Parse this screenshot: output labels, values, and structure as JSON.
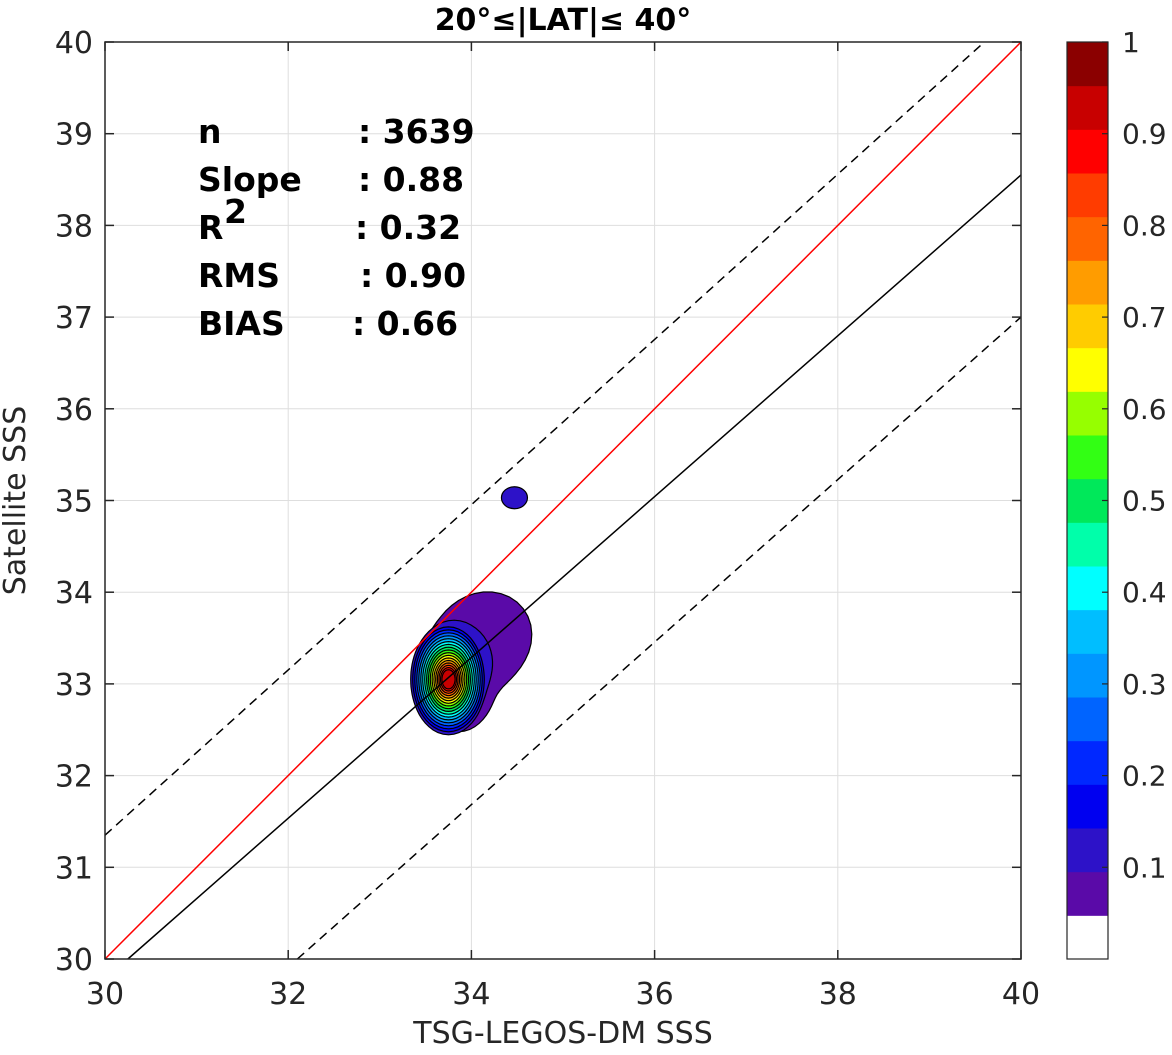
{
  "chart_data": {
    "type": "contour",
    "title": "20°≤|LAT|≤ 40°",
    "xlabel": "TSG-LEGOS-DM SSS",
    "ylabel": "Satellite SSS",
    "xlim": [
      30,
      40
    ],
    "ylim": [
      30,
      40
    ],
    "xticks": [
      "30",
      "32",
      "34",
      "36",
      "38",
      "40"
    ],
    "yticks": [
      "30",
      "31",
      "32",
      "33",
      "34",
      "35",
      "36",
      "37",
      "38",
      "39",
      "40"
    ],
    "grid": true,
    "stats": [
      {
        "label": "n",
        "value": ": 3639"
      },
      {
        "label": "Slope",
        "value": ": 0.88"
      },
      {
        "label": "R",
        "sup": "2",
        "value": ": 0.32"
      },
      {
        "label": "RMS",
        "value": ": 0.90"
      },
      {
        "label": "BIAS",
        "value": ": 0.66"
      }
    ],
    "lines": [
      {
        "kind": "one-to-one",
        "color": "#ff0000",
        "dash": false,
        "points": [
          [
            30,
            30
          ],
          [
            40,
            40
          ]
        ]
      },
      {
        "kind": "regression",
        "color": "#000000",
        "dash": false,
        "points": [
          [
            30.25,
            30
          ],
          [
            40,
            38.55
          ]
        ]
      },
      {
        "kind": "upper-bound",
        "color": "#000000",
        "dash": "dashed",
        "points": [
          [
            30,
            31.35
          ],
          [
            39.6,
            40
          ]
        ]
      },
      {
        "kind": "lower-bound",
        "color": "#000000",
        "dash": "dashed",
        "points": [
          [
            32.1,
            30
          ],
          [
            40,
            37
          ]
        ]
      }
    ],
    "density_peak": {
      "x": 33.75,
      "y": 33.05,
      "value": 1.0
    },
    "secondary_blob": {
      "x": 34.47,
      "y": 35.03,
      "value": 0.08
    },
    "contour_levels": [
      0.05,
      0.1,
      0.15,
      0.2,
      0.25,
      0.3,
      0.35,
      0.4,
      0.45,
      0.5,
      0.55,
      0.6,
      0.65,
      0.7,
      0.75,
      0.8,
      0.85,
      0.9,
      0.95
    ],
    "colorbar": {
      "range": [
        0,
        1
      ],
      "ticks": [
        "0.1",
        "0.2",
        "0.3",
        "0.4",
        "0.5",
        "0.6",
        "0.7",
        "0.8",
        "0.9",
        "1"
      ],
      "colors": [
        "#ffffff",
        "#5a0aa8",
        "#2d12c8",
        "#0000f0",
        "#0028ff",
        "#0064ff",
        "#0096ff",
        "#00beff",
        "#00ffff",
        "#00ffaa",
        "#00e85a",
        "#32ff14",
        "#96ff00",
        "#ffff00",
        "#ffcc00",
        "#ff9c00",
        "#ff6400",
        "#ff3c00",
        "#ff0000",
        "#c80000",
        "#8b0000"
      ]
    }
  }
}
